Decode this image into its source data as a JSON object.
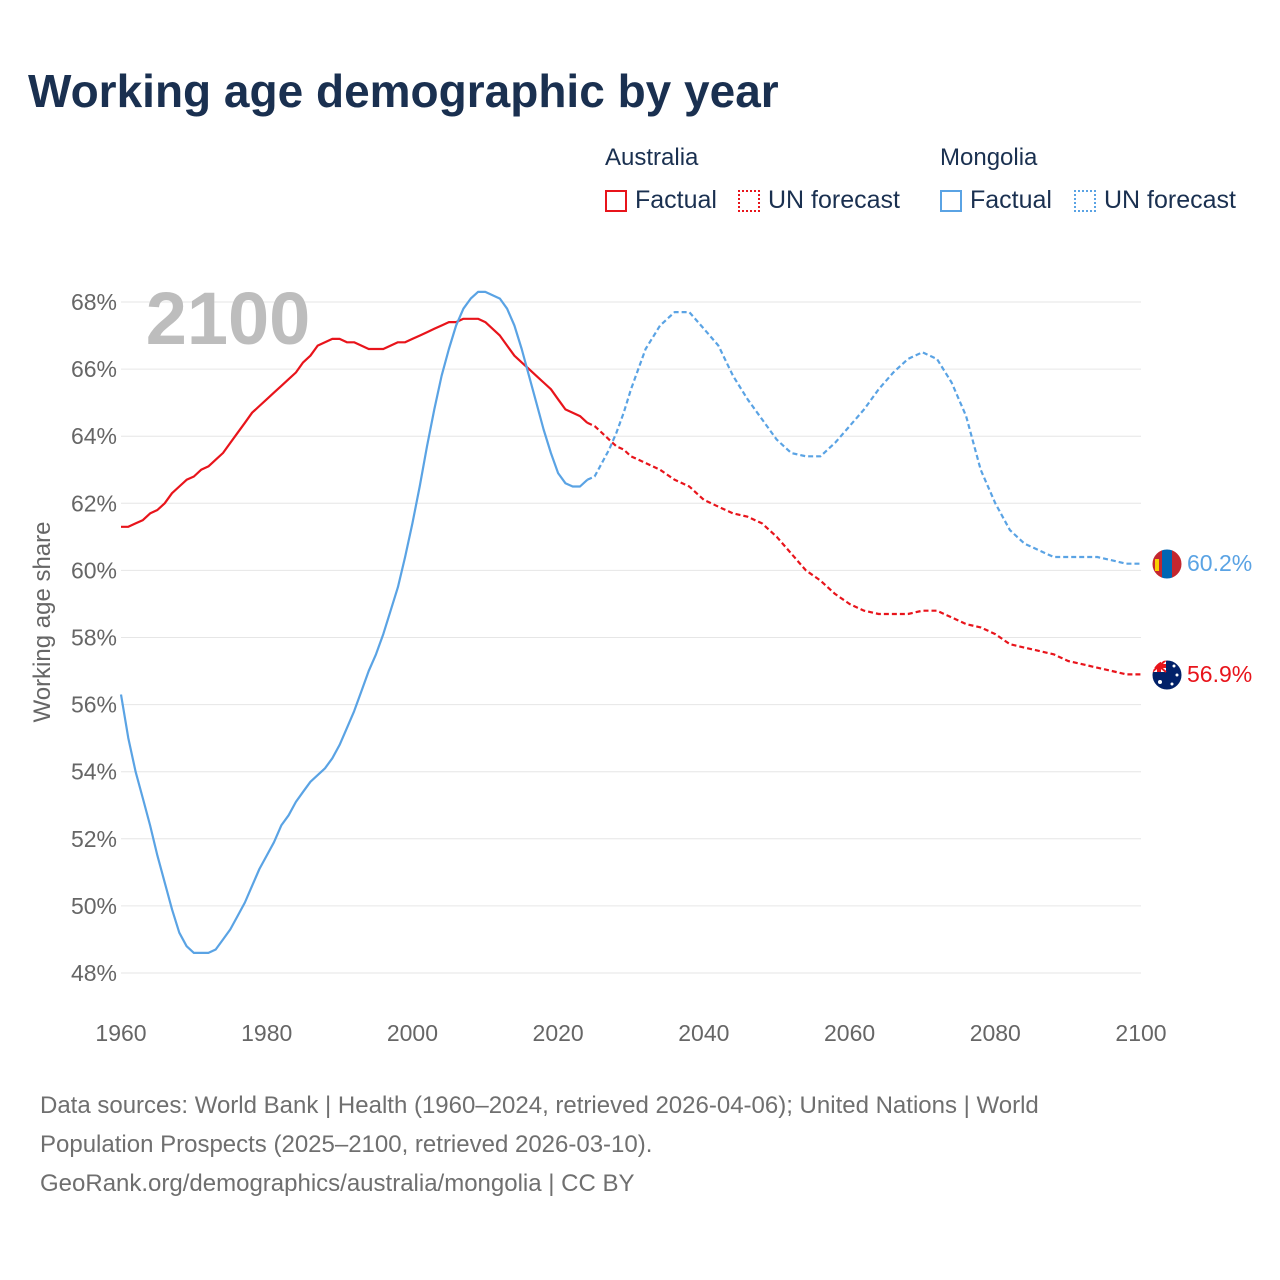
{
  "title": "Working age demographic by year",
  "legend": {
    "groups": [
      {
        "name": "Australia",
        "color": "#e8141b",
        "factual_label": "Factual",
        "forecast_label": "UN forecast"
      },
      {
        "name": "Mongolia",
        "color": "#5aa3e4",
        "factual_label": "Factual",
        "forecast_label": "UN forecast"
      }
    ]
  },
  "year_overlay": "2100",
  "footer": {
    "line1": "Data sources: World Bank | Health (1960–2024, retrieved 2026-04-06); United Nations | World",
    "line2": "Population Prospects (2025–2100, retrieved 2026-03-10).",
    "line3": "GeoRank.org/demographics/australia/mongolia | CC BY"
  },
  "chart_data": {
    "type": "line",
    "title": "Working age demographic by year",
    "xlabel": "",
    "ylabel": "Working age share",
    "xlim": [
      1960,
      2100
    ],
    "ylim": [
      47,
      69
    ],
    "grid": true,
    "x_ticks": [
      1960,
      1980,
      2000,
      2020,
      2040,
      2060,
      2080,
      2100
    ],
    "x_tick_labels": [
      "1960",
      "1980",
      "2000",
      "2020",
      "2040",
      "2060",
      "2080",
      "2100"
    ],
    "y_ticks": [
      48,
      50,
      52,
      54,
      56,
      58,
      60,
      62,
      64,
      66,
      68
    ],
    "y_tick_labels": [
      "48%",
      "50%",
      "52%",
      "54%",
      "56%",
      "58%",
      "60%",
      "62%",
      "64%",
      "66%",
      "68%"
    ],
    "forecast_start": 2024,
    "series": [
      {
        "name": "Australia",
        "color": "#e8141b",
        "end_label": "56.9%",
        "x": [
          1960,
          1961,
          1962,
          1963,
          1964,
          1965,
          1966,
          1967,
          1968,
          1969,
          1970,
          1971,
          1972,
          1973,
          1974,
          1975,
          1976,
          1977,
          1978,
          1979,
          1980,
          1981,
          1982,
          1983,
          1984,
          1985,
          1986,
          1987,
          1988,
          1989,
          1990,
          1991,
          1992,
          1993,
          1994,
          1995,
          1996,
          1997,
          1998,
          1999,
          2000,
          2001,
          2002,
          2003,
          2004,
          2005,
          2006,
          2007,
          2008,
          2009,
          2010,
          2011,
          2012,
          2013,
          2014,
          2015,
          2016,
          2017,
          2018,
          2019,
          2020,
          2021,
          2022,
          2023,
          2024,
          2025,
          2026,
          2027,
          2028,
          2029,
          2030,
          2032,
          2034,
          2036,
          2038,
          2040,
          2042,
          2044,
          2046,
          2048,
          2050,
          2052,
          2054,
          2056,
          2058,
          2060,
          2062,
          2064,
          2066,
          2068,
          2070,
          2072,
          2074,
          2076,
          2078,
          2080,
          2082,
          2084,
          2086,
          2088,
          2090,
          2092,
          2094,
          2096,
          2098,
          2100
        ],
        "y": [
          61.3,
          61.3,
          61.4,
          61.5,
          61.7,
          61.8,
          62.0,
          62.3,
          62.5,
          62.7,
          62.8,
          63.0,
          63.1,
          63.3,
          63.5,
          63.8,
          64.1,
          64.4,
          64.7,
          64.9,
          65.1,
          65.3,
          65.5,
          65.7,
          65.9,
          66.2,
          66.4,
          66.7,
          66.8,
          66.9,
          66.9,
          66.8,
          66.8,
          66.7,
          66.6,
          66.6,
          66.6,
          66.7,
          66.8,
          66.8,
          66.9,
          67.0,
          67.1,
          67.2,
          67.3,
          67.4,
          67.4,
          67.5,
          67.5,
          67.5,
          67.4,
          67.2,
          67.0,
          66.7,
          66.4,
          66.2,
          66.0,
          65.8,
          65.6,
          65.4,
          65.1,
          64.8,
          64.7,
          64.6,
          64.4,
          64.3,
          64.1,
          63.9,
          63.7,
          63.6,
          63.4,
          63.2,
          63.0,
          62.7,
          62.5,
          62.1,
          61.9,
          61.7,
          61.6,
          61.4,
          61.0,
          60.5,
          60.0,
          59.7,
          59.3,
          59.0,
          58.8,
          58.7,
          58.7,
          58.7,
          58.8,
          58.8,
          58.6,
          58.4,
          58.3,
          58.1,
          57.8,
          57.7,
          57.6,
          57.5,
          57.3,
          57.2,
          57.1,
          57.0,
          56.9,
          56.9
        ]
      },
      {
        "name": "Mongolia",
        "color": "#5aa3e4",
        "end_label": "60.2%",
        "x": [
          1960,
          1961,
          1962,
          1963,
          1964,
          1965,
          1966,
          1967,
          1968,
          1969,
          1970,
          1971,
          1972,
          1973,
          1974,
          1975,
          1976,
          1977,
          1978,
          1979,
          1980,
          1981,
          1982,
          1983,
          1984,
          1985,
          1986,
          1987,
          1988,
          1989,
          1990,
          1991,
          1992,
          1993,
          1994,
          1995,
          1996,
          1997,
          1998,
          1999,
          2000,
          2001,
          2002,
          2003,
          2004,
          2005,
          2006,
          2007,
          2008,
          2009,
          2010,
          2011,
          2012,
          2013,
          2014,
          2015,
          2016,
          2017,
          2018,
          2019,
          2020,
          2021,
          2022,
          2023,
          2024,
          2025,
          2026,
          2027,
          2028,
          2029,
          2030,
          2032,
          2034,
          2036,
          2038,
          2040,
          2042,
          2044,
          2046,
          2048,
          2050,
          2052,
          2054,
          2056,
          2058,
          2060,
          2062,
          2064,
          2066,
          2068,
          2070,
          2072,
          2074,
          2076,
          2078,
          2080,
          2082,
          2084,
          2086,
          2088,
          2090,
          2092,
          2094,
          2096,
          2098,
          2100
        ],
        "y": [
          56.3,
          55.0,
          54.0,
          53.2,
          52.4,
          51.5,
          50.7,
          49.9,
          49.2,
          48.8,
          48.6,
          48.6,
          48.6,
          48.7,
          49.0,
          49.3,
          49.7,
          50.1,
          50.6,
          51.1,
          51.5,
          51.9,
          52.4,
          52.7,
          53.1,
          53.4,
          53.7,
          53.9,
          54.1,
          54.4,
          54.8,
          55.3,
          55.8,
          56.4,
          57.0,
          57.5,
          58.1,
          58.8,
          59.5,
          60.4,
          61.4,
          62.5,
          63.7,
          64.8,
          65.8,
          66.6,
          67.3,
          67.8,
          68.1,
          68.3,
          68.3,
          68.2,
          68.1,
          67.8,
          67.3,
          66.6,
          65.8,
          65.0,
          64.2,
          63.5,
          62.9,
          62.6,
          62.5,
          62.5,
          62.7,
          62.8,
          63.2,
          63.6,
          64.1,
          64.7,
          65.4,
          66.6,
          67.3,
          67.7,
          67.7,
          67.2,
          66.7,
          65.8,
          65.1,
          64.5,
          63.9,
          63.5,
          63.4,
          63.4,
          63.8,
          64.3,
          64.8,
          65.4,
          65.9,
          66.3,
          66.5,
          66.3,
          65.6,
          64.6,
          63.0,
          62.0,
          61.2,
          60.8,
          60.6,
          60.4,
          60.4,
          60.4,
          60.4,
          60.3,
          60.2,
          60.2
        ]
      }
    ]
  }
}
